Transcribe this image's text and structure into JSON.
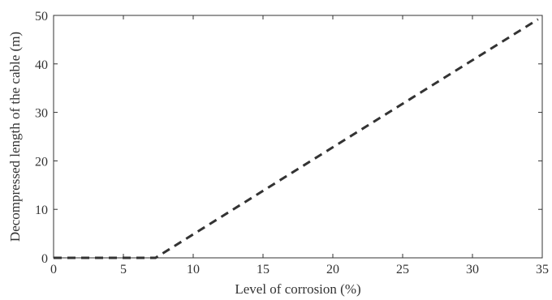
{
  "chart_data": {
    "type": "line",
    "title": "",
    "xlabel": "Level of corrosion (%)",
    "ylabel": "Decompressed length of the cable (m)",
    "xlim": [
      0,
      35
    ],
    "ylim": [
      0,
      50
    ],
    "xticks": [
      0,
      5,
      10,
      15,
      20,
      25,
      30,
      35
    ],
    "yticks": [
      0,
      10,
      20,
      30,
      40,
      50
    ],
    "grid": false,
    "legend": "none",
    "series": [
      {
        "style": "dashed",
        "color": "#333333",
        "x": [
          0,
          7.3,
          34.7
        ],
        "y": [
          0,
          0,
          49.2
        ]
      }
    ]
  }
}
